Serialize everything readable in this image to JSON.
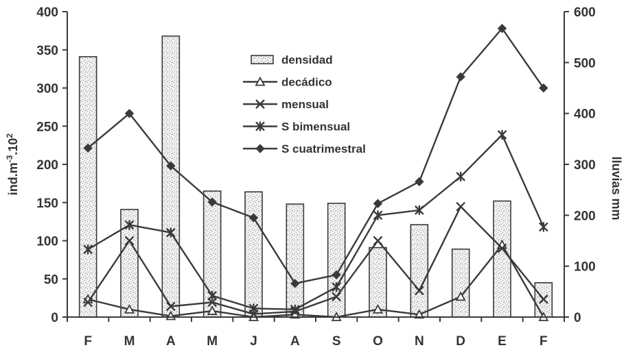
{
  "chart_data": {
    "type": "bar",
    "categories": [
      "F",
      "M",
      "A",
      "M",
      "J",
      "A",
      "S",
      "O",
      "N",
      "D",
      "E",
      "F"
    ],
    "left_axis": {
      "label_base": "ind.m",
      "label_exp1": "-3",
      "label_mid": ".10",
      "label_exp2": "2",
      "ylim": [
        0,
        400
      ],
      "ticks": [
        "0",
        "50",
        "100",
        "150",
        "200",
        "250",
        "300",
        "350",
        "400"
      ]
    },
    "right_axis": {
      "label": "lluvias mm",
      "ylim": [
        0,
        600
      ],
      "ticks": [
        "0",
        "100",
        "200",
        "300",
        "400",
        "500",
        "600"
      ]
    },
    "series": [
      {
        "name": "densidad",
        "kind": "bar",
        "axis": "left",
        "values": [
          341,
          141,
          368,
          165,
          164,
          148,
          149,
          91,
          121,
          89,
          152,
          45
        ]
      },
      {
        "name": "decádico",
        "kind": "line",
        "marker": "triangle",
        "axis": "right",
        "values": [
          35,
          15,
          2,
          12,
          0,
          5,
          0,
          15,
          5,
          40,
          142,
          0
        ]
      },
      {
        "name": "mensual",
        "kind": "line",
        "marker": "x",
        "axis": "right",
        "values": [
          29,
          150,
          21,
          29,
          6,
          11,
          40,
          150,
          52,
          217,
          135,
          35
        ]
      },
      {
        "name": "S bimensual",
        "kind": "line",
        "marker": "star",
        "axis": "right",
        "values": [
          133,
          181,
          166,
          42,
          17,
          15,
          59,
          200,
          210,
          276,
          358,
          177
        ]
      },
      {
        "name": "S cuatrimestral",
        "kind": "line",
        "marker": "diamond",
        "axis": "right",
        "values": [
          332,
          400,
          297,
          226,
          195,
          66,
          83,
          223,
          266,
          472,
          567,
          450
        ]
      }
    ],
    "grid": false,
    "legend_position": "top-center"
  }
}
